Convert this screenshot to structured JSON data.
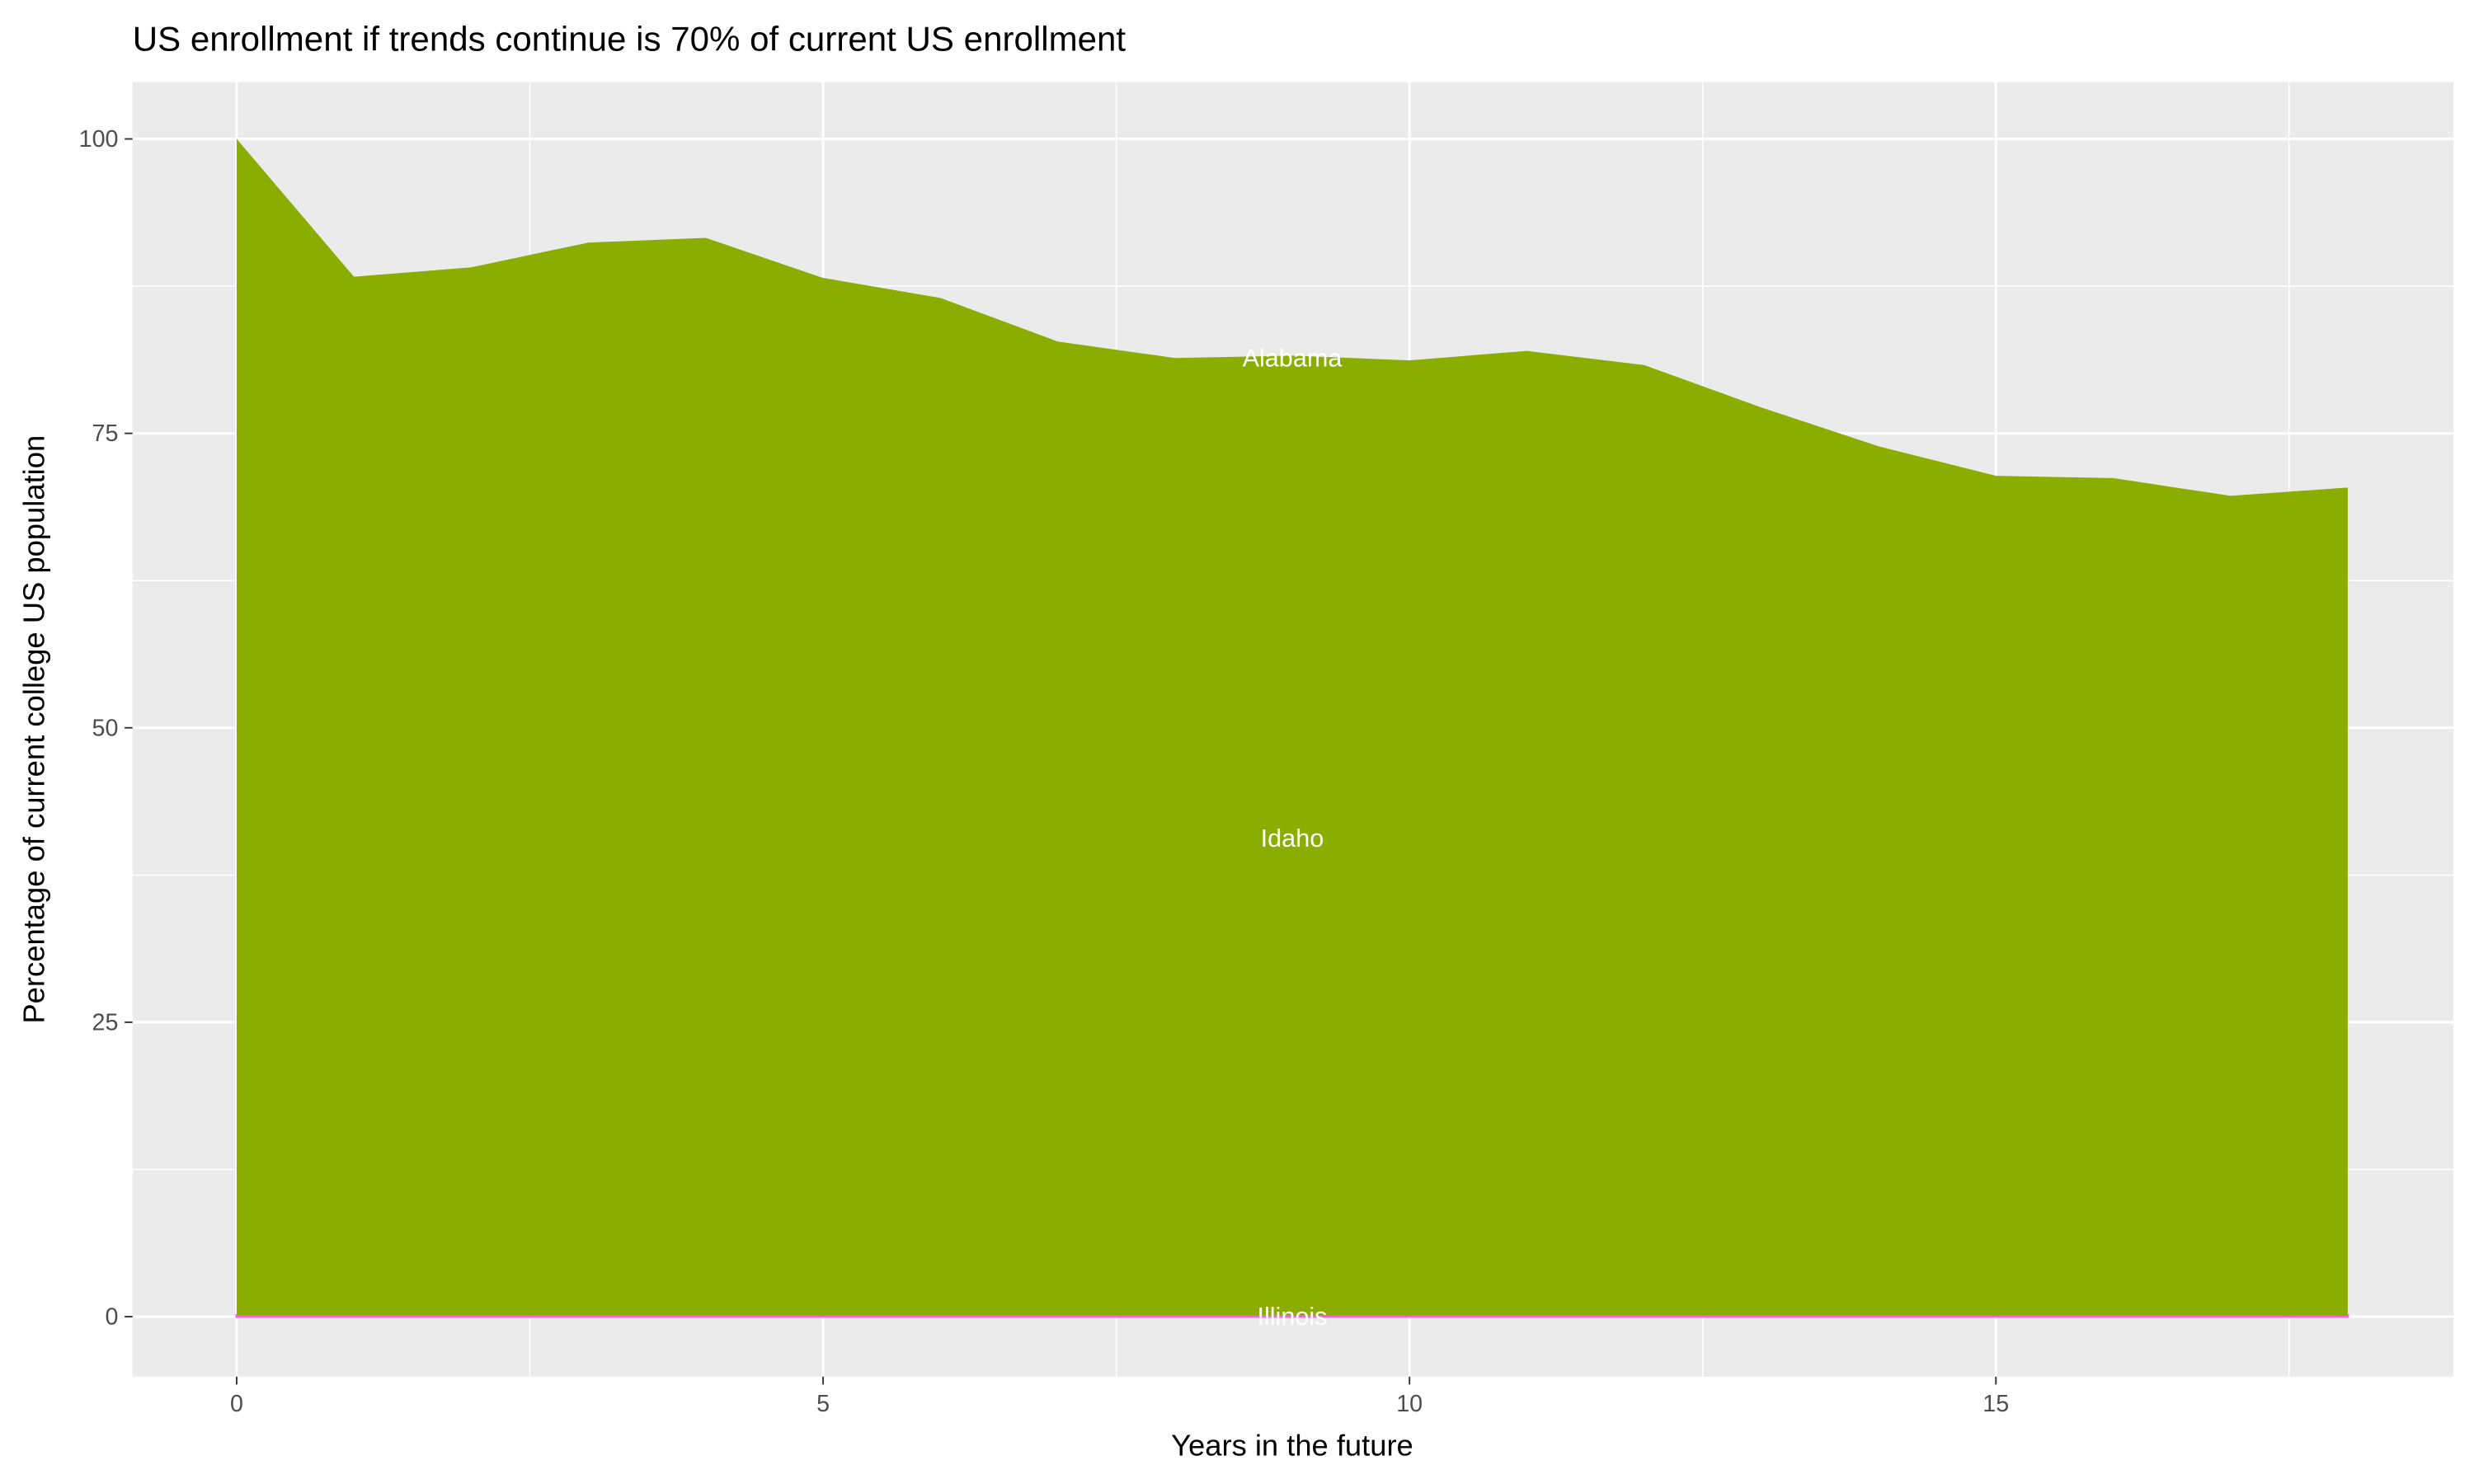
{
  "chart_data": {
    "type": "area",
    "stacked": true,
    "title": "US enrollment if trends continue is 70% of current US enrollment",
    "xlabel": "Years in the future",
    "ylabel": "Percentage of current college US population",
    "xlim": [
      -1.8,
      19.8
    ],
    "ylim": [
      -5,
      105
    ],
    "x_ticks": [
      0,
      5,
      10,
      15
    ],
    "y_ticks": [
      0,
      25,
      50,
      75,
      100
    ],
    "grid": true,
    "legend": "none",
    "x": [
      0,
      1,
      2,
      3,
      4,
      5,
      6,
      7,
      8,
      9,
      10,
      11,
      12,
      13,
      14,
      15,
      16,
      17,
      18
    ],
    "series": [
      {
        "name": "Illinois",
        "color": "#F8766D",
        "values": [
          0.1,
          0.1,
          0.1,
          0.1,
          0.1,
          0.1,
          0.1,
          0.1,
          0.1,
          0.1,
          0.1,
          0.1,
          0.1,
          0.1,
          0.1,
          0.1,
          0.1,
          0.1,
          0.1
        ]
      },
      {
        "name": "Idaho",
        "color": "#8AAD00",
        "values": [
          99.9,
          88.2,
          89.0,
          91.1,
          91.5,
          88.1,
          86.4,
          82.7,
          81.3,
          81.5,
          81.1,
          81.9,
          80.7,
          77.1,
          73.8,
          71.3,
          71.1,
          69.6,
          70.3
        ]
      },
      {
        "name": "Alabama",
        "color": "#C4D97F",
        "values": [
          0,
          0,
          0,
          0,
          0,
          0,
          0,
          0,
          0,
          0,
          0,
          0,
          0,
          0,
          0,
          0,
          0,
          0,
          0
        ]
      }
    ],
    "labels": [
      {
        "text": "Alabama",
        "x": 9,
        "y": 81.5
      },
      {
        "text": "Idaho",
        "x": 9,
        "y": 40.7
      },
      {
        "text": "Illinois",
        "x": 9,
        "y": 0.1
      }
    ],
    "panel_background": "#EBEBEB",
    "grid_color": "#FFFFFF"
  }
}
